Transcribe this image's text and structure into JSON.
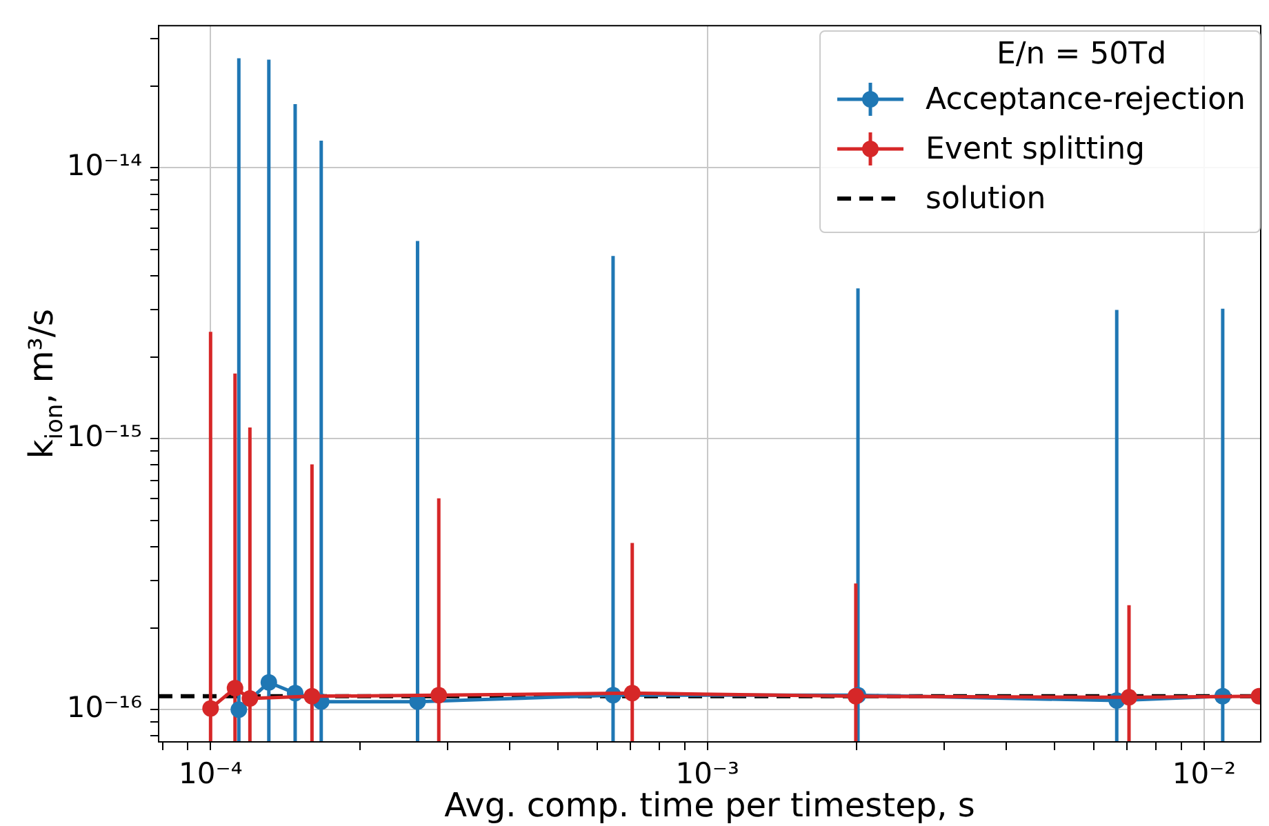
{
  "chart_data": {
    "type": "line",
    "xlabel": "Avg. comp. time per timestep, s",
    "ylabel": "k$_{ion}$, m³/s",
    "legend_title": "E/n = 50Td",
    "log": "xy",
    "grid": true,
    "legend": "top right",
    "marker": "circle",
    "line_style": "solid",
    "xlim": [
      7.86e-05,
      0.013
    ],
    "ylim": [
      7.6e-17,
      3.35e-14
    ],
    "xticks": [
      {
        "value": 8e-05,
        "label": null
      },
      {
        "value": 9e-05,
        "label": null
      },
      {
        "value": 0.0001,
        "label": "10⁻⁴"
      },
      {
        "value": 0.0002,
        "label": null
      },
      {
        "value": 0.0003,
        "label": null
      },
      {
        "value": 0.0004,
        "label": null
      },
      {
        "value": 0.0005,
        "label": null
      },
      {
        "value": 0.0006,
        "label": null
      },
      {
        "value": 0.0007,
        "label": null
      },
      {
        "value": 0.0008,
        "label": null
      },
      {
        "value": 0.0009,
        "label": null
      },
      {
        "value": 0.001,
        "label": "10⁻³"
      },
      {
        "value": 0.002,
        "label": null
      },
      {
        "value": 0.003,
        "label": null
      },
      {
        "value": 0.004,
        "label": null
      },
      {
        "value": 0.005,
        "label": null
      },
      {
        "value": 0.006,
        "label": null
      },
      {
        "value": 0.007,
        "label": null
      },
      {
        "value": 0.008,
        "label": null
      },
      {
        "value": 0.009,
        "label": null
      },
      {
        "value": 0.01,
        "label": "10⁻²"
      }
    ],
    "yticks": [
      {
        "value": 8e-17,
        "label": null
      },
      {
        "value": 9e-17,
        "label": null
      },
      {
        "value": 1e-16,
        "label": "10⁻¹⁶"
      },
      {
        "value": 2e-16,
        "label": null
      },
      {
        "value": 3e-16,
        "label": null
      },
      {
        "value": 4e-16,
        "label": null
      },
      {
        "value": 5e-16,
        "label": null
      },
      {
        "value": 6e-16,
        "label": null
      },
      {
        "value": 7e-16,
        "label": null
      },
      {
        "value": 8e-16,
        "label": null
      },
      {
        "value": 9e-16,
        "label": null
      },
      {
        "value": 1e-15,
        "label": "10⁻¹⁵"
      },
      {
        "value": 2e-15,
        "label": null
      },
      {
        "value": 3e-15,
        "label": null
      },
      {
        "value": 4e-15,
        "label": null
      },
      {
        "value": 5e-15,
        "label": null
      },
      {
        "value": 6e-15,
        "label": null
      },
      {
        "value": 7e-15,
        "label": null
      },
      {
        "value": 8e-15,
        "label": null
      },
      {
        "value": 9e-15,
        "label": null
      },
      {
        "value": 1e-14,
        "label": "10⁻¹⁴"
      },
      {
        "value": 2e-14,
        "label": null
      },
      {
        "value": 3e-14,
        "label": null
      }
    ],
    "series": [
      {
        "name": "Acceptance-rejection",
        "color": "#1f77b4",
        "x": [
          0.000114,
          0.000131,
          0.000148,
          0.000167,
          0.000261,
          0.000646,
          0.00201,
          0.00667,
          0.0109
        ],
        "values": [
          1e-16,
          1.26e-16,
          1.15e-16,
          1.07e-16,
          1.07e-16,
          1.13e-16,
          1.13e-16,
          1.08e-16,
          1.12e-16
        ],
        "errors": [
          [
            7.6e-17,
            2.54e-14
          ],
          [
            7.6e-17,
            2.51e-14
          ],
          [
            7.6e-17,
            1.72e-14
          ],
          [
            7.6e-17,
            1.26e-14
          ],
          [
            7.6e-17,
            5.37e-15
          ],
          [
            7.6e-17,
            4.73e-15
          ],
          [
            7.6e-17,
            3.59e-15
          ],
          [
            7.6e-17,
            2.99e-15
          ],
          [
            7.6e-17,
            3.02e-15
          ]
        ]
      },
      {
        "name": "Event splitting",
        "color": "#d62728",
        "x": [
          0.0001,
          0.000112,
          0.00012,
          0.00016,
          0.000288,
          0.000706,
          0.00199,
          0.00706,
          0.0129
        ],
        "values": [
          1.01e-16,
          1.2e-16,
          1.1e-16,
          1.12e-16,
          1.13e-16,
          1.15e-16,
          1.12e-16,
          1.11e-16,
          1.12e-16
        ],
        "errors": [
          [
            7.6e-17,
            2.48e-15
          ],
          [
            7.6e-17,
            1.74e-15
          ],
          [
            7.6e-17,
            1.1e-15
          ],
          [
            7.6e-17,
            8.04e-16
          ],
          [
            7.6e-17,
            6.03e-16
          ],
          [
            7.6e-17,
            4.12e-16
          ],
          [
            7.6e-17,
            2.92e-16
          ],
          [
            7.6e-17,
            2.43e-16
          ],
          null
        ]
      }
    ],
    "ref_lines": [
      {
        "axis": "y",
        "value": 1.12e-16,
        "label": "solution",
        "color": "#000000",
        "line_style": "dashed"
      }
    ]
  }
}
